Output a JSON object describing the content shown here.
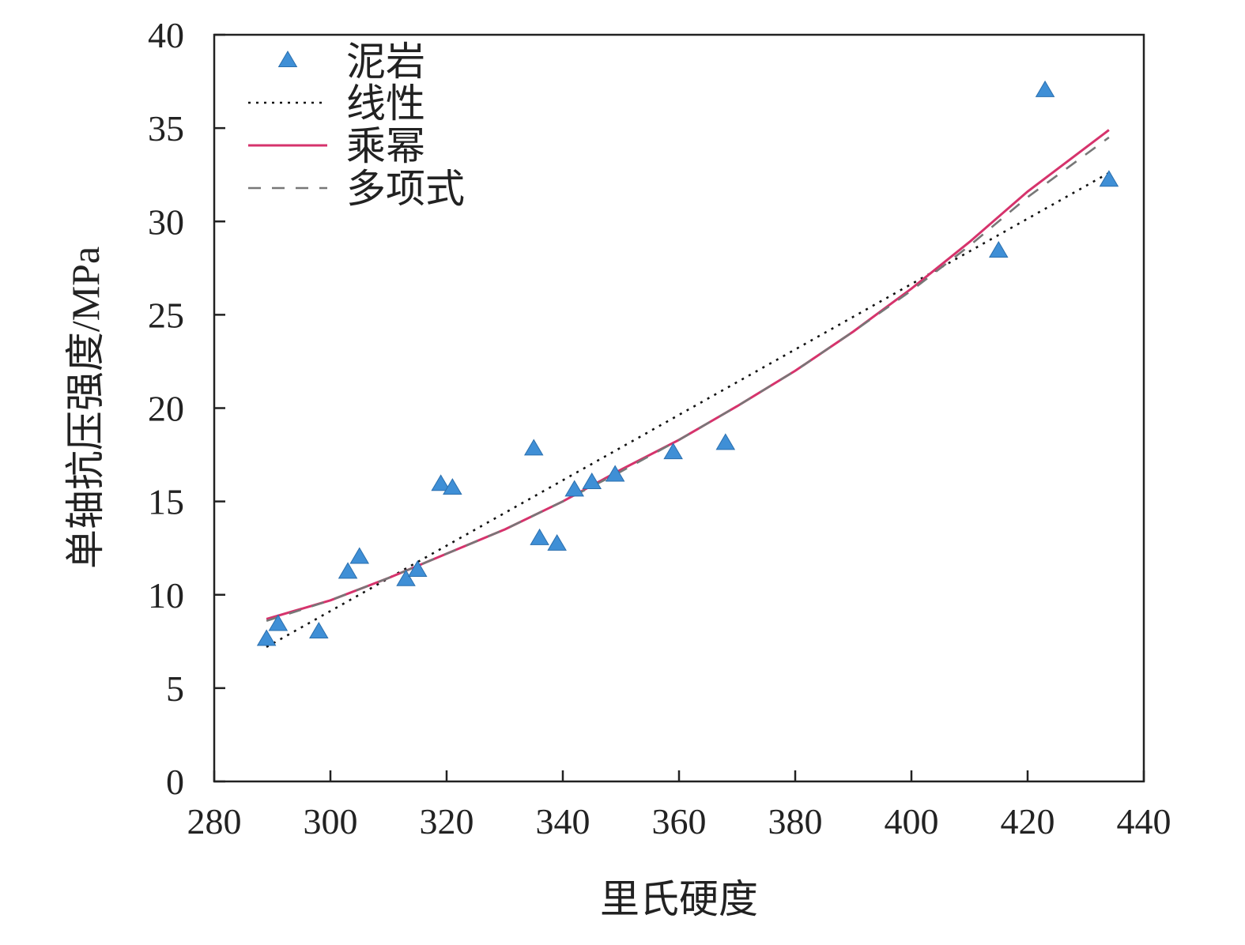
{
  "chart_data": {
    "type": "scatter",
    "xlabel": "里氏硬度",
    "ylabel": "单轴抗压强度/MPa",
    "xlim": [
      280,
      440
    ],
    "ylim": [
      0,
      40
    ],
    "x_ticks": [
      "280",
      "300",
      "320",
      "340",
      "360",
      "380",
      "400",
      "420",
      "440"
    ],
    "y_ticks": [
      "0",
      "5",
      "10",
      "15",
      "20",
      "25",
      "30",
      "35",
      "40"
    ],
    "legend_position": "top-left",
    "points": {
      "name": "泥岩",
      "color": "#3f8fd6",
      "marker": "triangle",
      "x": [
        289,
        291,
        298,
        303,
        305,
        313,
        315,
        319,
        321,
        335,
        336,
        339,
        342,
        345,
        349,
        359,
        368,
        415,
        423,
        434
      ],
      "y": [
        7.6,
        8.4,
        8.0,
        11.2,
        12.0,
        10.8,
        11.3,
        15.9,
        15.7,
        17.8,
        13.0,
        12.7,
        15.6,
        16.0,
        16.4,
        17.6,
        18.1,
        28.4,
        37.0,
        32.2
      ]
    },
    "fits": [
      {
        "name": "线性",
        "style": "dotted",
        "color": "#111111",
        "x": [
          289,
          434
        ],
        "y": [
          7.2,
          32.6
        ]
      },
      {
        "name": "乘幂",
        "style": "solid",
        "color": "#d6336c",
        "x": [
          289,
          300,
          310,
          320,
          330,
          340,
          350,
          360,
          370,
          380,
          390,
          400,
          410,
          420,
          434
        ],
        "y": [
          8.7,
          9.7,
          10.9,
          12.2,
          13.5,
          15.0,
          16.7,
          18.3,
          20.1,
          22.0,
          24.1,
          26.4,
          28.9,
          31.6,
          34.9
        ]
      },
      {
        "name": "多项式",
        "style": "dashed",
        "color": "#777777",
        "x": [
          289,
          300,
          310,
          320,
          330,
          340,
          350,
          360,
          370,
          380,
          390,
          400,
          410,
          420,
          434
        ],
        "y": [
          8.6,
          9.7,
          10.9,
          12.2,
          13.5,
          15.0,
          16.6,
          18.3,
          20.1,
          22.0,
          24.1,
          26.3,
          28.7,
          31.3,
          34.5
        ]
      }
    ],
    "legend": [
      "泥岩",
      "线性",
      "乘幂",
      "多项式"
    ]
  }
}
